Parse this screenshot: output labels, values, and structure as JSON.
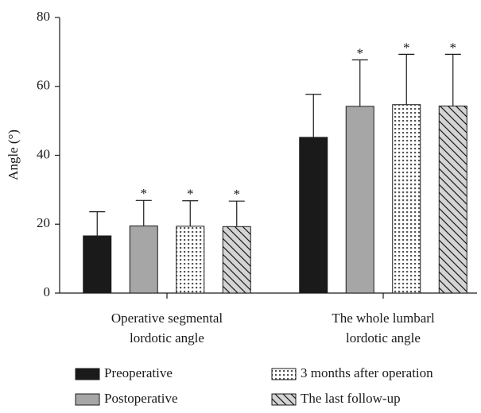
{
  "chart_data": {
    "type": "bar",
    "y_label": "Angle (°)",
    "categories": [
      [
        "Operative segmental",
        "lordotic angle"
      ],
      [
        "The whole lumbarl",
        "lordotic angle"
      ]
    ],
    "ylim": [
      0,
      80
    ],
    "yticks": [
      0,
      20,
      40,
      60,
      80
    ],
    "series": [
      {
        "name": "Preoperative",
        "color": "#1a1a1a",
        "pattern": "solid",
        "values": [
          16.6,
          45.2
        ],
        "errors": [
          7.0,
          12.5
        ],
        "annotations": [
          null,
          null
        ]
      },
      {
        "name": "Postoperative",
        "color": "#a6a6a6",
        "pattern": "solid",
        "values": [
          19.5,
          54.2
        ],
        "errors": [
          7.4,
          13.5
        ],
        "annotations": [
          "*",
          "*"
        ]
      },
      {
        "name": "3 months after operation",
        "color": "#ffffff",
        "pattern": "dots",
        "values": [
          19.4,
          54.7
        ],
        "errors": [
          7.4,
          14.6
        ],
        "annotations": [
          "*",
          "*"
        ]
      },
      {
        "name": "The last follow-up",
        "color": "#d4d4d4",
        "pattern": "hatch",
        "values": [
          19.3,
          54.3
        ],
        "errors": [
          7.4,
          15.0
        ],
        "annotations": [
          "*",
          "*"
        ]
      }
    ]
  }
}
